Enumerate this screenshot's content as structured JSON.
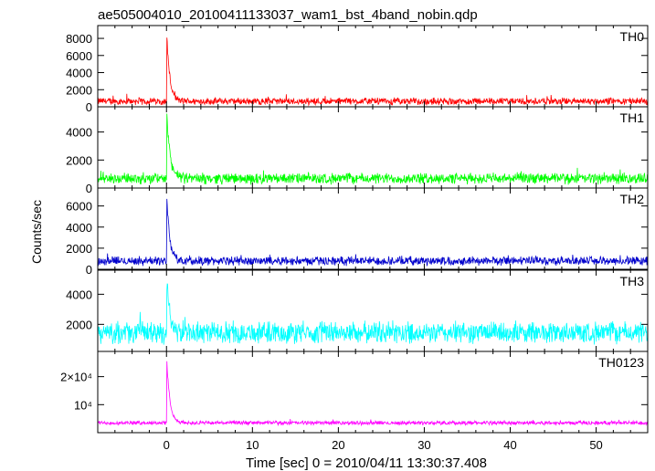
{
  "chart_data": {
    "type": "line",
    "title": "ae505004010_20100411133037_wam1_bst_4band_nobin.qdp",
    "xlabel": "Time [sec] 0 = 2010/04/11 13:30:37.408",
    "ylabel": "Counts/sec",
    "xlim": [
      -8,
      56
    ],
    "x_ticks": [
      {
        "value": 0,
        "label": "0"
      },
      {
        "value": 10,
        "label": "10"
      },
      {
        "value": 20,
        "label": "20"
      },
      {
        "value": 30,
        "label": "30"
      },
      {
        "value": 40,
        "label": "40"
      },
      {
        "value": 50,
        "label": "50"
      }
    ],
    "grid": false,
    "panels": [
      {
        "name": "TH0",
        "color": "#ff0000",
        "ylim": [
          0,
          9500
        ],
        "y_ticks": [
          {
            "value": 0,
            "label": "0"
          },
          {
            "value": 2000,
            "label": "2000"
          },
          {
            "value": 4000,
            "label": "4000"
          },
          {
            "value": 6000,
            "label": "6000"
          },
          {
            "value": 8000,
            "label": "8000"
          }
        ],
        "baseline": 650,
        "noise": 700,
        "peak_time": 0,
        "peak_value": 9400,
        "decay_sec": 0.35
      },
      {
        "name": "TH1",
        "color": "#00ff00",
        "ylim": [
          0,
          5800
        ],
        "y_ticks": [
          {
            "value": 0,
            "label": "0"
          },
          {
            "value": 2000,
            "label": "2000"
          },
          {
            "value": 4000,
            "label": "4000"
          }
        ],
        "baseline": 680,
        "noise": 650,
        "peak_time": 0,
        "peak_value": 5700,
        "decay_sec": 0.4
      },
      {
        "name": "TH2",
        "color": "#0000cc",
        "ylim": [
          0,
          7700
        ],
        "y_ticks": [
          {
            "value": 0,
            "label": "0"
          },
          {
            "value": 2000,
            "label": "2000"
          },
          {
            "value": 4000,
            "label": "4000"
          },
          {
            "value": 6000,
            "label": "6000"
          }
        ],
        "baseline": 800,
        "noise": 700,
        "peak_time": 0,
        "peak_value": 7600,
        "decay_sec": 0.35
      },
      {
        "name": "TH3",
        "color": "#00ffff",
        "ylim": [
          200,
          5600
        ],
        "y_ticks": [
          {
            "value": 2000,
            "label": "2000"
          },
          {
            "value": 4000,
            "label": "4000"
          }
        ],
        "baseline": 1450,
        "noise": 1200,
        "peak_time": 0,
        "peak_value": 5500,
        "decay_sec": 0.35
      },
      {
        "name": "TH0123",
        "color": "#ff00ff",
        "ylim": [
          0,
          29000
        ],
        "y_ticks": [
          {
            "value": 10000,
            "label": "10⁴"
          },
          {
            "value": 20000,
            "label": "2×10⁴"
          }
        ],
        "baseline": 3500,
        "noise": 1200,
        "peak_time": 0,
        "peak_value": 28800,
        "decay_sec": 0.35
      }
    ]
  }
}
